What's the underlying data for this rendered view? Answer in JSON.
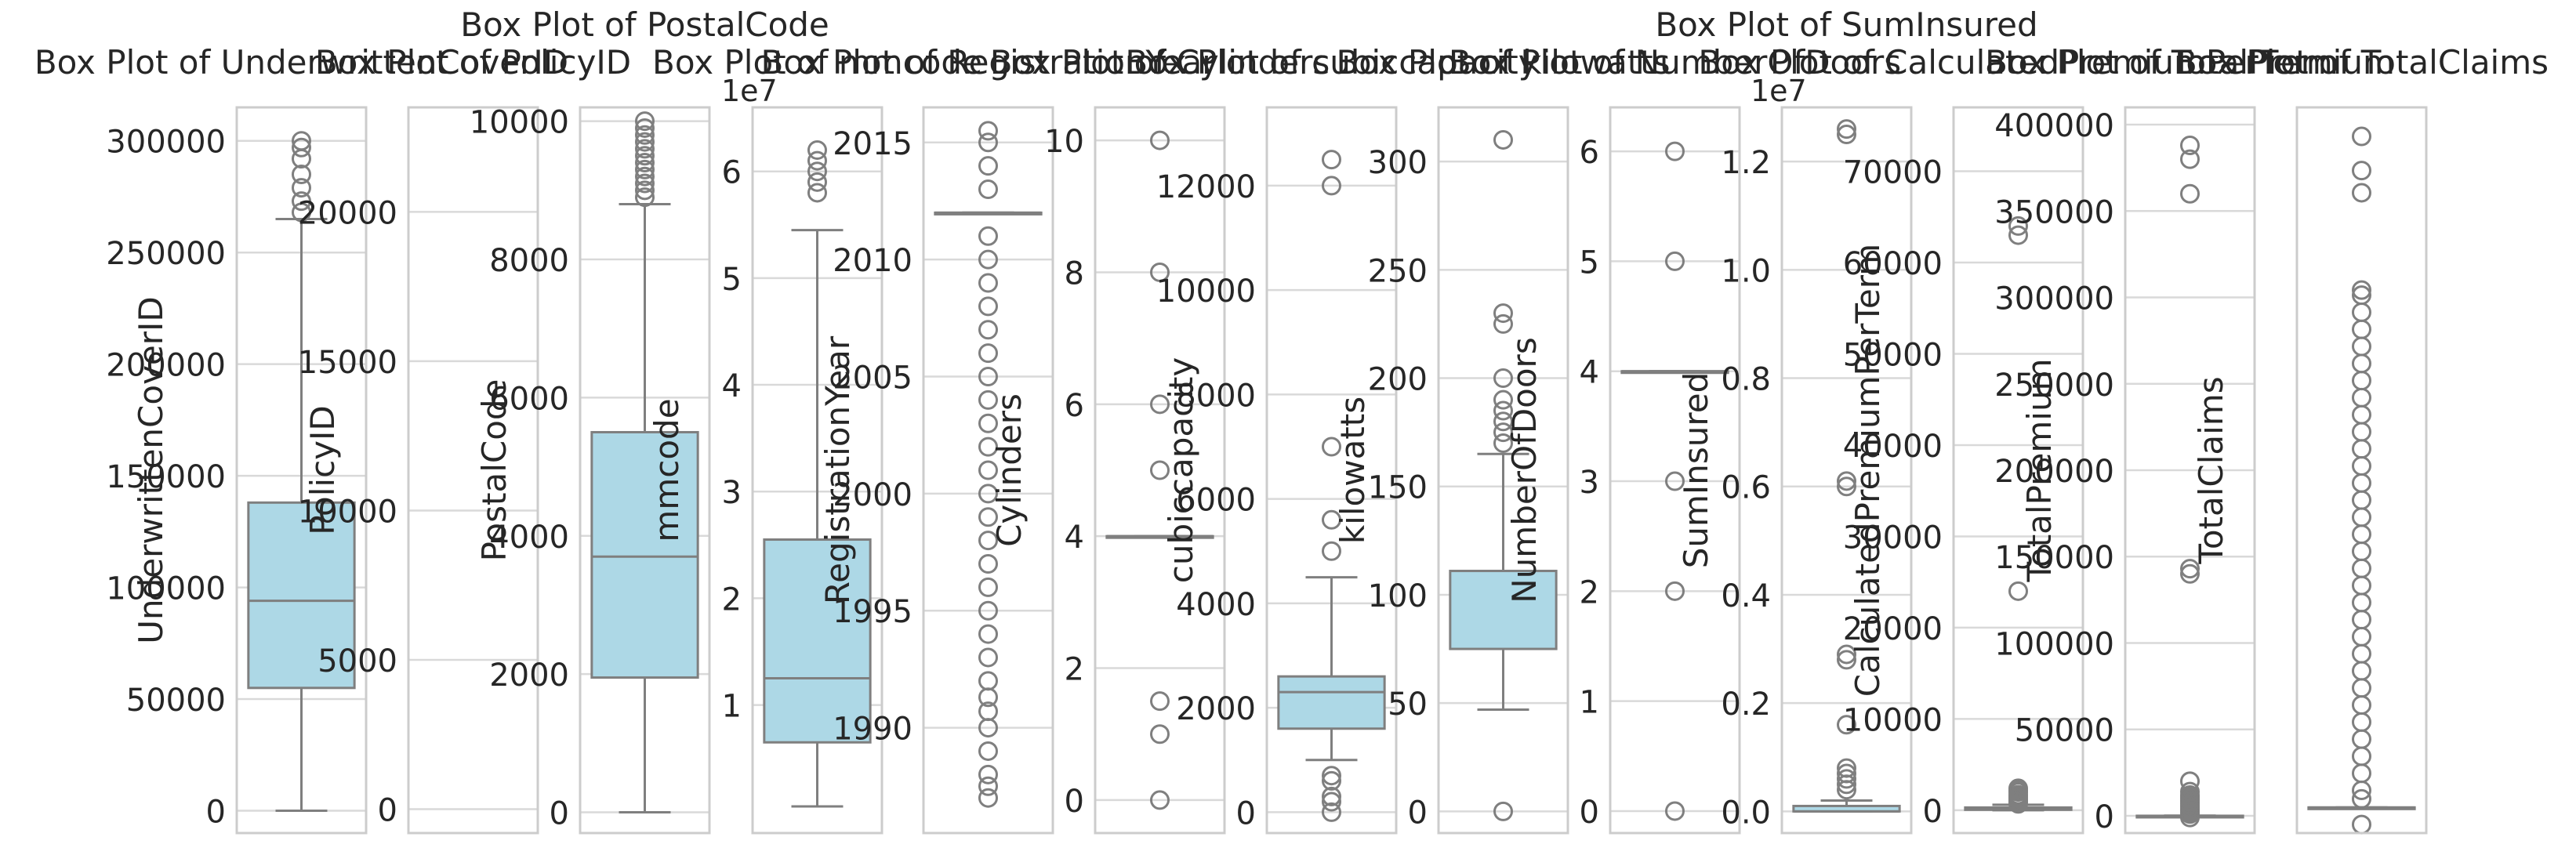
{
  "colors": {
    "box_fill": "#add8e6",
    "line": "#7f7f7f",
    "grid": "#d9d9d9",
    "frame": "#cccccc",
    "text": "#262626"
  },
  "chart_data": [
    {
      "type": "box",
      "title": "Box Plot of UnderwrittenCoverID",
      "ylabel": "UnderwrittenCoverID",
      "offset_label": "",
      "ylim": [
        -10000,
        315000
      ],
      "ticks": [
        0,
        50000,
        100000,
        150000,
        200000,
        250000,
        300000
      ],
      "tick_labels": [
        "0",
        "50000",
        "100000",
        "150000",
        "200000",
        "250000",
        "300000"
      ],
      "whisker_low": 0,
      "q1": 55000,
      "median": 94000,
      "q3": 138000,
      "whisker_high": 265000,
      "outliers": [
        268000,
        273000,
        279000,
        285000,
        292000,
        297000,
        300000
      ]
    },
    {
      "type": "box",
      "title": "Box Plot of PolicyID",
      "ylabel": "PolicyID",
      "offset_label": "",
      "ylim": [
        -800,
        23500
      ],
      "ticks": [
        0,
        5000,
        10000,
        15000,
        20000
      ],
      "tick_labels": [
        "0",
        "5000",
        "10000",
        "15000",
        "20000"
      ],
      "whisker_low": null,
      "q1": null,
      "median": null,
      "q3": null,
      "whisker_high": null,
      "outliers": []
    },
    {
      "type": "box",
      "title": "Box Plot of PostalCode",
      "ylabel": "PostalCode",
      "offset_label": "",
      "ylim": [
        -300,
        10200
      ],
      "ticks": [
        0,
        2000,
        4000,
        6000,
        8000,
        10000
      ],
      "tick_labels": [
        "0",
        "2000",
        "4000",
        "6000",
        "8000",
        "10000"
      ],
      "whisker_low": 0,
      "q1": 1950,
      "median": 3700,
      "q3": 5500,
      "whisker_high": 8800,
      "outliers": [
        8900,
        9000,
        9100,
        9200,
        9300,
        9400,
        9500,
        9600,
        9700,
        9800,
        9900,
        10000
      ]
    },
    {
      "type": "box",
      "title": "Box Plot of mmcode",
      "ylabel": "mmcode",
      "offset_label": "1e7",
      "ylim": [
        -0.2,
        6.6
      ],
      "ticks": [
        1,
        2,
        3,
        4,
        5,
        6
      ],
      "tick_labels": [
        "1",
        "2",
        "3",
        "4",
        "5",
        "6"
      ],
      "whisker_low": 0.05,
      "q1": 0.65,
      "median": 1.25,
      "q3": 2.55,
      "whisker_high": 5.45,
      "outliers": [
        5.8,
        5.9,
        6.0,
        6.1,
        6.2
      ]
    },
    {
      "type": "box",
      "title": "Box Plot of RegistrationYear",
      "ylabel": "RegistrationYear",
      "offset_label": "",
      "ylim": [
        1985.5,
        2016.5
      ],
      "ticks": [
        1990,
        1995,
        2000,
        2005,
        2010,
        2015
      ],
      "tick_labels": [
        "1990",
        "1995",
        "2000",
        "2005",
        "2010",
        "2015"
      ],
      "whisker_low": 2012,
      "q1": 2012,
      "median": 2012,
      "q3": 2012,
      "whisker_high": 2012,
      "outliers": [
        1987,
        1987.5,
        1988,
        1989,
        1990,
        1990.7,
        1991.3,
        1992,
        1993,
        1994,
        1995,
        1996,
        1997,
        1998,
        1999,
        2000,
        2001,
        2002,
        2003,
        2004,
        2005,
        2006,
        2007,
        2008,
        2009,
        2010,
        2011,
        2013,
        2014,
        2015,
        2015.5
      ]
    },
    {
      "type": "box",
      "title": "Box Plot of Cylinders",
      "ylabel": "Cylinders",
      "offset_label": "",
      "ylim": [
        -0.5,
        10.5
      ],
      "ticks": [
        0,
        2,
        4,
        6,
        8,
        10
      ],
      "tick_labels": [
        "0",
        "2",
        "4",
        "6",
        "8",
        "10"
      ],
      "whisker_low": 4,
      "q1": 4,
      "median": 4,
      "q3": 4,
      "whisker_high": 4,
      "outliers": [
        0,
        1,
        1.5,
        5,
        6,
        8,
        10
      ]
    },
    {
      "type": "box",
      "title": "Box Plot of cubiccapacity",
      "ylabel": "cubiccapacity",
      "offset_label": "",
      "ylim": [
        -400,
        13500
      ],
      "ticks": [
        0,
        2000,
        4000,
        6000,
        8000,
        10000,
        12000
      ],
      "tick_labels": [
        "0",
        "2000",
        "4000",
        "6000",
        "8000",
        "10000",
        "12000"
      ],
      "whisker_low": 1000,
      "q1": 1600,
      "median": 2300,
      "q3": 2600,
      "whisker_high": 4500,
      "outliers": [
        0,
        200,
        300,
        600,
        700,
        5000,
        5600,
        7000,
        12000,
        12500
      ]
    },
    {
      "type": "box",
      "title": "Box Plot of kilowatts",
      "ylabel": "kilowatts",
      "offset_label": "",
      "ylim": [
        -10,
        325
      ],
      "ticks": [
        0,
        50,
        100,
        150,
        200,
        250,
        300
      ],
      "tick_labels": [
        "0",
        "50",
        "100",
        "150",
        "200",
        "250",
        "300"
      ],
      "whisker_low": 47,
      "q1": 75,
      "median": 111,
      "q3": 111,
      "whisker_high": 165,
      "outliers": [
        0,
        170,
        175,
        180,
        185,
        190,
        200,
        225,
        230,
        310
      ]
    },
    {
      "type": "box",
      "title": "Box Plot of NumberOfDoors",
      "ylabel": "NumberOfDoors",
      "offset_label": "",
      "ylim": [
        -0.2,
        6.4
      ],
      "ticks": [
        0,
        1,
        2,
        3,
        4,
        5,
        6
      ],
      "tick_labels": [
        "0",
        "1",
        "2",
        "3",
        "4",
        "5",
        "6"
      ],
      "whisker_low": 4,
      "q1": 4,
      "median": 4,
      "q3": 4,
      "whisker_high": 4,
      "outliers": [
        0,
        2,
        3,
        5,
        6
      ]
    },
    {
      "type": "box",
      "title": "Box Plot of SumInsured",
      "ylabel": "SumInsured",
      "offset_label": "1e7",
      "ylim": [
        -0.04,
        1.3
      ],
      "ticks": [
        0.0,
        0.2,
        0.4,
        0.6,
        0.8,
        1.0,
        1.2
      ],
      "tick_labels": [
        "0.0",
        "0.2",
        "0.4",
        "0.6",
        "0.8",
        "1.0",
        "1.2"
      ],
      "whisker_low": 0,
      "q1": 0,
      "median": 0,
      "q3": 0.01,
      "whisker_high": 0.02,
      "outliers": [
        0.04,
        0.05,
        0.06,
        0.07,
        0.08,
        0.16,
        0.28,
        0.29,
        0.6,
        0.61,
        1.25,
        1.26
      ]
    },
    {
      "type": "box",
      "title": "Box Plot of CalculatedPremiumPerTerm",
      "ylabel": "CalculatedPremiumPerTerm",
      "offset_label": "",
      "ylim": [
        -2500,
        77000
      ],
      "ticks": [
        0,
        10000,
        20000,
        30000,
        40000,
        50000,
        60000,
        70000
      ],
      "tick_labels": [
        "0",
        "10000",
        "20000",
        "30000",
        "40000",
        "50000",
        "60000",
        "70000"
      ],
      "whisker_low": 0,
      "q1": 50,
      "median": 100,
      "q3": 300,
      "whisker_high": 600,
      "outliers": [
        700,
        900,
        1100,
        1300,
        1500,
        1700,
        2000,
        2200,
        2400,
        24000,
        63000,
        64000
      ]
    },
    {
      "type": "box",
      "title": "Box Plot of TotalPremium",
      "ylabel": "TotalPremium",
      "offset_label": "",
      "ylim": [
        -10000,
        410000
      ],
      "ticks": [
        0,
        50000,
        100000,
        150000,
        200000,
        250000,
        300000,
        350000,
        400000
      ],
      "tick_labels": [
        "0",
        "50000",
        "100000",
        "150000",
        "200000",
        "250000",
        "300000",
        "350000",
        "400000"
      ],
      "whisker_low": 0,
      "q1": 0,
      "median": 0,
      "q3": 0,
      "whisker_high": 100,
      "outliers": [
        -1000,
        1000,
        2000,
        3000,
        4000,
        5000,
        6000,
        7000,
        8000,
        9000,
        10000,
        11000,
        12000,
        14000,
        20000,
        140000,
        143000,
        360000,
        380000,
        388000
      ]
    },
    {
      "type": "box",
      "title": "Box Plot of TotalClaims",
      "ylabel": "TotalClaims",
      "offset_label": "",
      "ylim": [
        -15000,
        410000
      ],
      "ticks": [],
      "tick_labels": [],
      "whisker_low": 0,
      "q1": 0,
      "median": 0,
      "q3": 0,
      "whisker_high": 0,
      "outliers": [
        -10000,
        5000,
        10000,
        20000,
        30000,
        40000,
        50000,
        60000,
        70000,
        80000,
        90000,
        100000,
        110000,
        120000,
        130000,
        140000,
        150000,
        160000,
        170000,
        180000,
        190000,
        200000,
        210000,
        220000,
        230000,
        240000,
        250000,
        260000,
        270000,
        280000,
        290000,
        300000,
        303000,
        360000,
        373000,
        393000
      ]
    }
  ]
}
